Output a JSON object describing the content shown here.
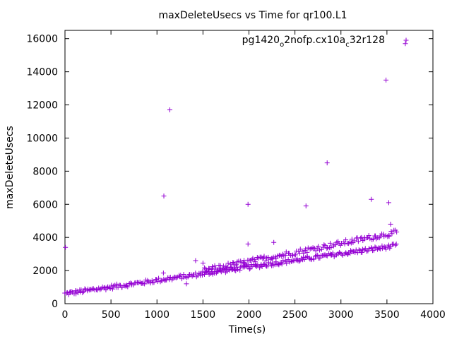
{
  "chart_data": {
    "type": "scatter",
    "title": "maxDeleteUsecs vs Time for qr100.L1",
    "xlabel": "Time(s)",
    "ylabel": "maxDeleteUsecs",
    "xlim": [
      0,
      4000
    ],
    "ylim": [
      0,
      16500
    ],
    "xticks": [
      0,
      500,
      1000,
      1500,
      2000,
      2500,
      3000,
      3500,
      4000
    ],
    "yticks": [
      0,
      2000,
      4000,
      6000,
      8000,
      10000,
      12000,
      14000,
      16000
    ],
    "grid": false,
    "legend_position": "top-right",
    "marker": "+",
    "series": [
      {
        "name_parts": [
          "pg1420",
          "o",
          "2nofp.cx10a",
          "c",
          "32r128"
        ],
        "color": "#9400d3",
        "lower_band": {
          "x_start": 0,
          "y_start": 600,
          "x_end": 3600,
          "y_end": 3500
        },
        "upper_band": {
          "x_start": 1500,
          "y_start": 2000,
          "x_end": 3600,
          "y_end": 4300
        },
        "outliers": [
          {
            "x": 5,
            "y": 3400
          },
          {
            "x": 1075,
            "y": 6500
          },
          {
            "x": 1140,
            "y": 11700
          },
          {
            "x": 1990,
            "y": 6000
          },
          {
            "x": 1990,
            "y": 3600
          },
          {
            "x": 2270,
            "y": 3700
          },
          {
            "x": 2620,
            "y": 5900
          },
          {
            "x": 2850,
            "y": 8500
          },
          {
            "x": 3330,
            "y": 6300
          },
          {
            "x": 3490,
            "y": 13500
          },
          {
            "x": 3520,
            "y": 6100
          },
          {
            "x": 3540,
            "y": 4800
          },
          {
            "x": 3700,
            "y": 15700
          },
          {
            "x": 1320,
            "y": 1200
          },
          {
            "x": 1420,
            "y": 2600
          },
          {
            "x": 1070,
            "y": 1850
          },
          {
            "x": 1500,
            "y": 2450
          }
        ]
      }
    ]
  }
}
